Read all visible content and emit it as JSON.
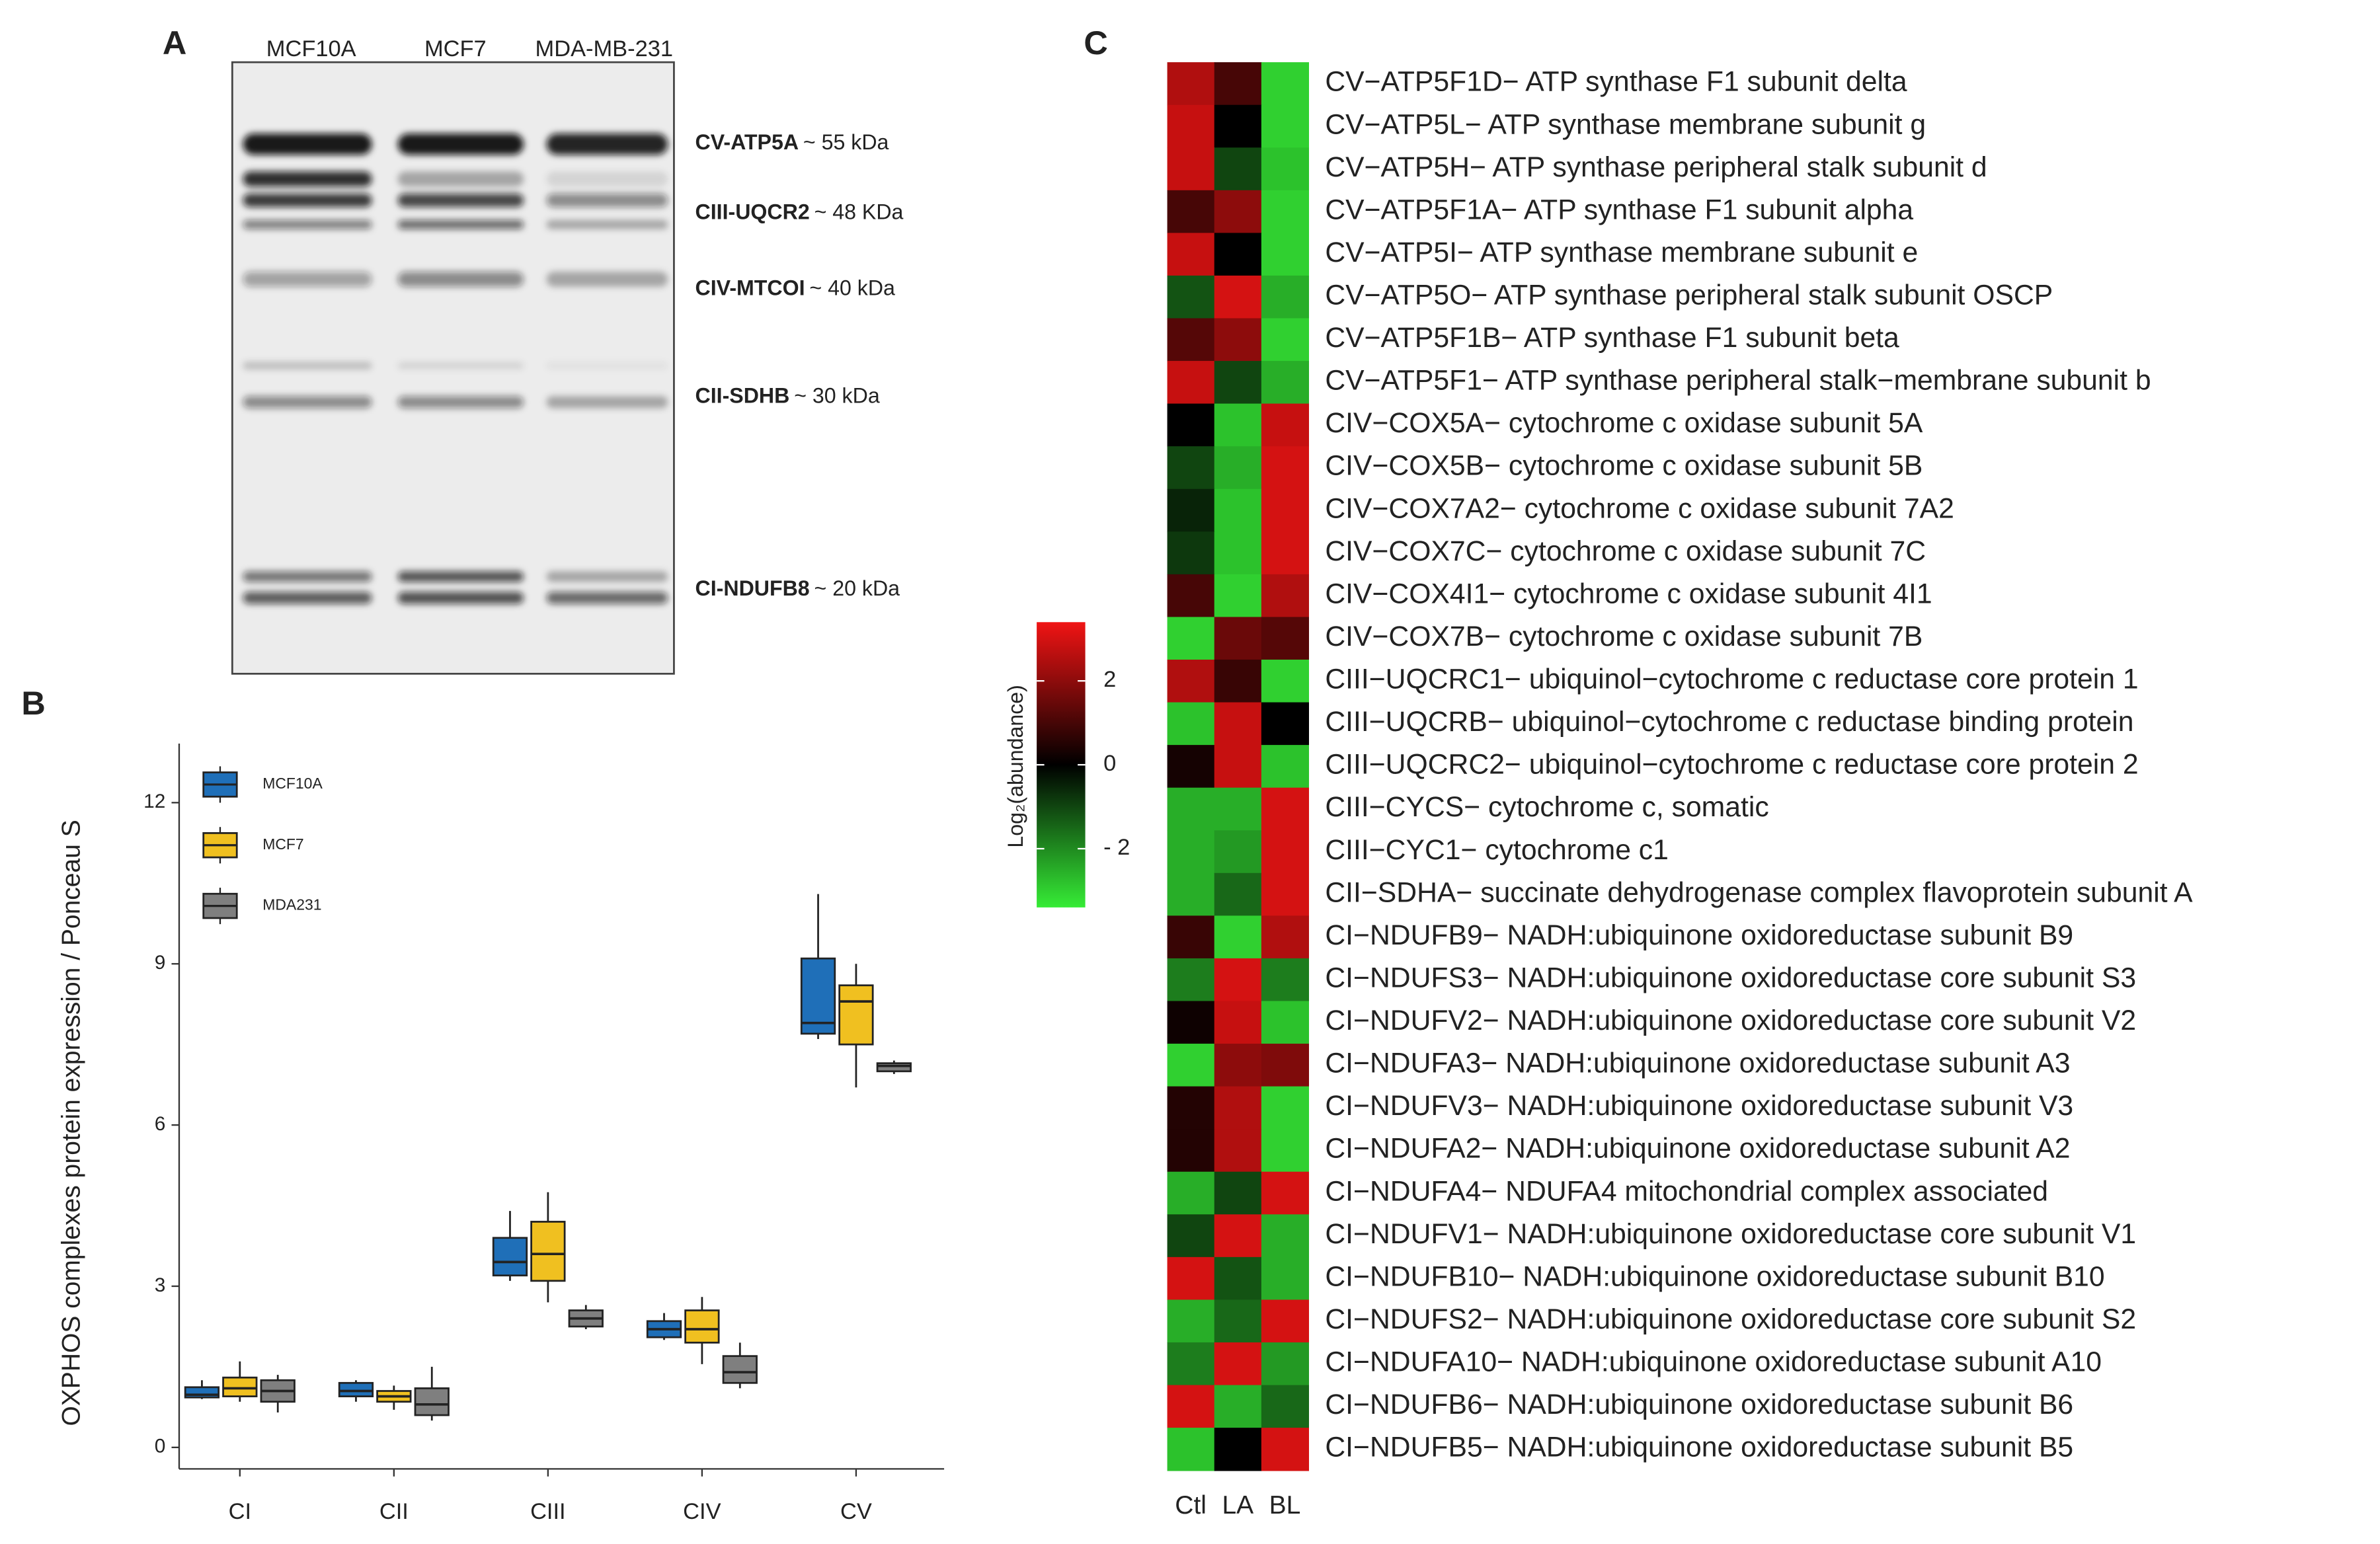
{
  "figure": {
    "panel_labels": [
      "A",
      "B",
      "C"
    ]
  },
  "blot": {
    "lanes": [
      "MCF10A",
      "MCF7",
      "MDA-MB-231"
    ],
    "bands": [
      {
        "protein": "CV-ATP5A",
        "size": "~ 55 kDa"
      },
      {
        "protein": "CIII-UQCR2",
        "size": "~ 48 KDa"
      },
      {
        "protein": "CIV-MTCOI",
        "size": "~ 40 kDa"
      },
      {
        "protein": "CII-SDHB",
        "size": "~ 30 kDa"
      },
      {
        "protein": "CI-NDUFB8",
        "size": "~ 20 kDa"
      }
    ]
  },
  "chart_data": [
    {
      "type": "box",
      "y_label": "OXPHOS complexes protein expression / Ponceau S",
      "categories": [
        "CI",
        "CII",
        "CIII",
        "CIV",
        "CV"
      ],
      "ylim": [
        -0.4,
        13.1
      ],
      "yticks": [
        0,
        3,
        6,
        9,
        12
      ],
      "legend": "upper-left",
      "grid": false,
      "series": [
        {
          "name": "MCF10A",
          "color": "#1f6fb8",
          "values": [
            [
              0.9,
              0.93,
              0.98,
              1.12,
              1.25
            ],
            [
              0.85,
              0.95,
              1.05,
              1.2,
              1.25
            ],
            [
              3.1,
              3.2,
              3.45,
              3.9,
              4.4
            ],
            [
              2.0,
              2.05,
              2.2,
              2.35,
              2.5
            ],
            [
              7.6,
              7.7,
              7.9,
              9.1,
              10.3
            ]
          ]
        },
        {
          "name": "MCF7",
          "color": "#f0c020",
          "values": [
            [
              0.85,
              0.95,
              1.1,
              1.3,
              1.6
            ],
            [
              0.7,
              0.85,
              0.95,
              1.05,
              1.15
            ],
            [
              2.7,
              3.1,
              3.6,
              4.2,
              4.75
            ],
            [
              1.55,
              1.95,
              2.2,
              2.55,
              2.8
            ],
            [
              6.7,
              7.5,
              8.3,
              8.6,
              9.0
            ]
          ]
        },
        {
          "name": "MDA231",
          "color": "#7f7f7f",
          "values": [
            [
              0.65,
              0.85,
              1.05,
              1.25,
              1.35
            ],
            [
              0.5,
              0.6,
              0.8,
              1.1,
              1.5
            ],
            [
              2.2,
              2.25,
              2.4,
              2.55,
              2.65
            ],
            [
              1.1,
              1.2,
              1.4,
              1.7,
              1.95
            ],
            [
              6.95,
              7.0,
              7.1,
              7.15,
              7.2
            ]
          ]
        }
      ]
    },
    {
      "type": "heatmap",
      "x_categories": [
        "Ctl",
        "LA",
        "BL"
      ],
      "y_categories": [
        "CV−ATP5F1D− ATP synthase F1 subunit delta",
        "CV−ATP5L− ATP synthase membrane subunit g",
        "CV−ATP5H− ATP synthase peripheral stalk subunit d",
        "CV−ATP5F1A− ATP synthase F1 subunit alpha",
        "CV−ATP5I− ATP synthase membrane subunit e",
        "CV−ATP5O− ATP synthase peripheral stalk subunit OSCP",
        "CV−ATP5F1B− ATP synthase F1 subunit beta",
        "CV−ATP5F1− ATP synthase peripheral stalk−membrane subunit b",
        "CIV−COX5A− cytochrome c oxidase subunit 5A",
        "CIV−COX5B− cytochrome c oxidase subunit 5B",
        "CIV−COX7A2− cytochrome c oxidase subunit 7A2",
        "CIV−COX7C− cytochrome c oxidase subunit 7C",
        "CIV−COX4I1− cytochrome c oxidase subunit 4I1",
        "CIV−COX7B− cytochrome c oxidase subunit 7B",
        "CIII−UQCRC1− ubiquinol−cytochrome c reductase core protein 1",
        "CIII−UQCRB− ubiquinol−cytochrome c reductase binding protein",
        "CIII−UQCRC2− ubiquinol−cytochrome c reductase core protein 2",
        "CIII−CYCS− cytochrome c, somatic",
        "CIII−CYC1− cytochrome c1",
        "CII−SDHA− succinate dehydrogenase complex flavoprotein subunit A",
        "CI−NDUFB9− NADH:ubiquinone oxidoreductase subunit B9",
        "CI−NDUFS3− NADH:ubiquinone oxidoreductase core subunit S3",
        "CI−NDUFV2− NADH:ubiquinone oxidoreductase core subunit V2",
        "CI−NDUFA3− NADH:ubiquinone oxidoreductase subunit A3",
        "CI−NDUFV3− NADH:ubiquinone oxidoreductase subunit V3",
        "CI−NDUFA2− NADH:ubiquinone oxidoreductase subunit A2",
        "CI−NDUFA4− NDUFA4 mitochondrial complex associated",
        "CI−NDUFV1− NADH:ubiquinone oxidoreductase core subunit V1",
        "CI−NDUFB10− NADH:ubiquinone oxidoreductase subunit B10",
        "CI−NDUFS2− NADH:ubiquinone oxidoreductase core subunit S2",
        "CI−NDUFA10− NADH:ubiquinone oxidoreductase subunit A10",
        "CI−NDUFB6− NADH:ubiquinone oxidoreductase subunit B6",
        "CI−NDUFB5− NADH:ubiquinone oxidoreductase subunit B5"
      ],
      "values": [
        [
          2.5,
          1,
          -3
        ],
        [
          2.8,
          0,
          -3
        ],
        [
          2.8,
          -1,
          -2.8
        ],
        [
          1,
          2,
          -3
        ],
        [
          2.8,
          0,
          -3
        ],
        [
          -1.2,
          3,
          -2.5
        ],
        [
          1.2,
          2,
          -3
        ],
        [
          2.8,
          -1,
          -2.5
        ],
        [
          0,
          -2.8,
          2.8
        ],
        [
          -1,
          -2.5,
          3
        ],
        [
          -0.5,
          -2.8,
          3
        ],
        [
          -0.8,
          -2.8,
          3
        ],
        [
          1,
          -3,
          2.5
        ],
        [
          -3,
          1.5,
          1.2
        ],
        [
          2.5,
          0.8,
          -3
        ],
        [
          -2.8,
          2.8,
          0
        ],
        [
          0.3,
          2.8,
          -2.8
        ],
        [
          -2.5,
          -2.5,
          3
        ],
        [
          -2.5,
          -2.2,
          3
        ],
        [
          -2.5,
          -1.5,
          3
        ],
        [
          0.8,
          -3,
          2.5
        ],
        [
          -1.8,
          3,
          -1.8
        ],
        [
          0.2,
          2.8,
          -2.8
        ],
        [
          -3,
          2,
          1.8
        ],
        [
          0.5,
          2.5,
          -3
        ],
        [
          0.5,
          2.5,
          -3
        ],
        [
          -2.5,
          -1,
          3
        ],
        [
          -1,
          3,
          -2.5
        ],
        [
          3,
          -1.2,
          -2.5
        ],
        [
          -2.5,
          -1.5,
          3
        ],
        [
          -1.8,
          3,
          -2.2
        ],
        [
          3,
          -2.5,
          -1.5
        ],
        [
          -2.8,
          0,
          3
        ]
      ],
      "colorbar": {
        "label": "Log₂(abundance)",
        "zlim": [
          -3.4,
          3.4
        ],
        "ticks": [
          2,
          0,
          {
            "value": -2,
            "label": "- 2"
          }
        ],
        "colors": [
          "#36ec36",
          "#000000",
          "#f01414"
        ]
      }
    }
  ]
}
